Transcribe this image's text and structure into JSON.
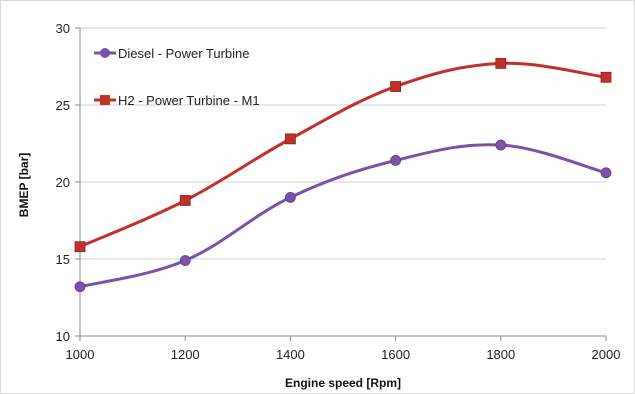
{
  "chart_data": {
    "type": "line",
    "title": "",
    "xlabel": "Engine speed [Rpm]",
    "ylabel": "BMEP [bar]",
    "x": [
      1000,
      1200,
      1400,
      1600,
      1800,
      2000
    ],
    "xlim": [
      1000,
      2000
    ],
    "ylim": [
      10,
      30
    ],
    "xticks": [
      1000,
      1200,
      1400,
      1600,
      1800,
      2000
    ],
    "yticks": [
      10,
      15,
      20,
      25,
      30
    ],
    "grid": "horizontal",
    "legend_position": "top-left",
    "smooth": true,
    "series": [
      {
        "name": "Diesel - Power Turbine",
        "values": [
          13.2,
          14.9,
          19.0,
          21.4,
          22.4,
          20.6
        ],
        "color": "#7b52a8",
        "marker": "circle"
      },
      {
        "name": "H2 - Power Turbine - M1",
        "values": [
          15.8,
          18.8,
          22.8,
          26.2,
          27.7,
          26.8
        ],
        "color": "#c0312b",
        "marker": "square"
      }
    ]
  }
}
